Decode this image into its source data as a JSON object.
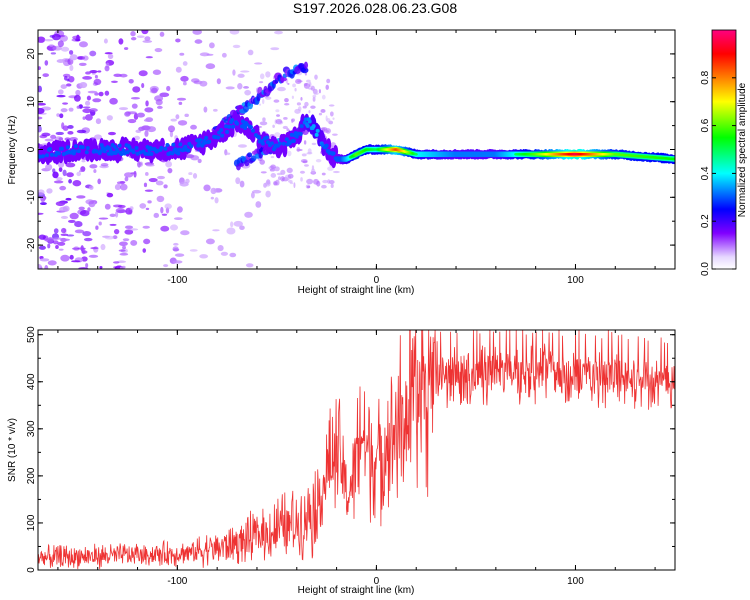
{
  "title": "S197.2026.028.06.23.G08",
  "colors": {
    "snr_line": "#ee3333",
    "frame": "#000000"
  },
  "chart_data": [
    {
      "type": "heatmap",
      "name": "spectrogram",
      "xlabel": "Height of straight line (km)",
      "ylabel": "Frequency (Hz)",
      "xlim": [
        -170,
        150
      ],
      "ylim": [
        -25,
        25
      ],
      "x_ticks": [
        -100,
        0,
        100
      ],
      "y_ticks": [
        20,
        10,
        0,
        -10,
        -20
      ],
      "colorbar": {
        "label": "Normalized spectral amplitude",
        "range": [
          0,
          1
        ],
        "ticks": [
          "0.0",
          "0.2",
          "0.4",
          "0.6",
          "0.8"
        ],
        "tick_values": [
          0.0,
          0.2,
          0.4,
          0.6,
          0.8
        ]
      },
      "ridge": {
        "x": [
          -170,
          -150,
          -130,
          -110,
          -100,
          -90,
          -80,
          -70,
          -60,
          -50,
          -40,
          -35,
          -30,
          -25,
          -20,
          -15,
          -10,
          -5,
          0,
          10,
          20,
          40,
          60,
          80,
          100,
          120,
          150
        ],
        "freq": [
          -1,
          0,
          0,
          0,
          0,
          1,
          3,
          6,
          3,
          0,
          3,
          6,
          4,
          0,
          -2,
          -2,
          -1,
          0,
          0,
          0,
          -1,
          -1,
          -1,
          -1,
          -1,
          -1,
          -2
        ],
        "amplitude": [
          0.1,
          0.15,
          0.2,
          0.2,
          0.25,
          0.3,
          0.35,
          0.35,
          0.35,
          0.3,
          0.35,
          0.4,
          0.45,
          0.35,
          0.3,
          0.45,
          0.6,
          0.55,
          0.5,
          0.85,
          0.5,
          0.4,
          0.4,
          0.6,
          0.95,
          0.6,
          0.55
        ]
      },
      "branches": [
        {
          "x": [
            -90,
            -75,
            -60,
            -45,
            -35
          ],
          "freq": [
            0,
            6,
            11,
            16,
            17
          ]
        },
        {
          "x": [
            -70,
            -55,
            -40,
            -32
          ],
          "freq": [
            -3,
            0,
            3,
            5
          ]
        }
      ]
    },
    {
      "type": "line",
      "name": "snr",
      "xlabel": "Height of straight line (km)",
      "ylabel": "SNR (10 * v/v)",
      "xlim": [
        -170,
        150
      ],
      "ylim": [
        0,
        510
      ],
      "x_ticks": [
        -100,
        0,
        100
      ],
      "y_ticks": [
        0,
        100,
        200,
        300,
        400,
        500
      ],
      "envelope": {
        "x": [
          -170,
          -140,
          -120,
          -100,
          -90,
          -80,
          -70,
          -60,
          -50,
          -40,
          -30,
          -25,
          -22,
          -20,
          -17,
          -15,
          -12,
          -10,
          -8,
          -5,
          0,
          5,
          10,
          15,
          20,
          25,
          30,
          40,
          60,
          80,
          100,
          120,
          150
        ],
        "mean": [
          25,
          30,
          32,
          35,
          40,
          48,
          58,
          70,
          85,
          100,
          140,
          200,
          230,
          260,
          220,
          150,
          190,
          250,
          300,
          260,
          230,
          270,
          310,
          330,
          360,
          390,
          405,
          415,
          420,
          420,
          415,
          410,
          400
        ]
      }
    }
  ]
}
